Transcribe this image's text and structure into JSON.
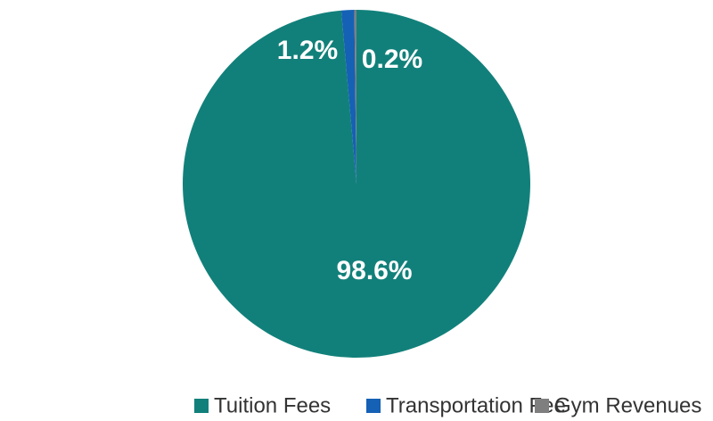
{
  "chart_data": {
    "type": "pie",
    "categories": [
      "Tuition Fees",
      "Transportation Fee",
      "Gym Revenues"
    ],
    "values": [
      98.6,
      1.2,
      0.2
    ],
    "value_labels": [
      "98.6%",
      "1.2%",
      "0.2%"
    ],
    "colors": [
      "#12807a",
      "#1561b5",
      "#7f7f7f"
    ],
    "legend": "bottom"
  }
}
